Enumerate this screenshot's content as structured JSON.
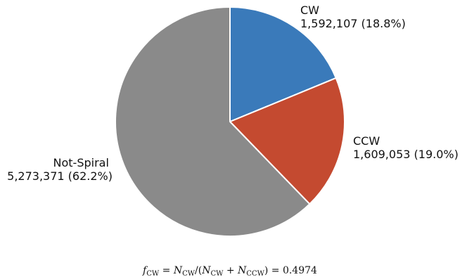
{
  "chart_data": {
    "type": "pie",
    "slices": [
      {
        "label": "CW",
        "count": "1,592,107",
        "percent": "18.8%",
        "value": 1592107,
        "color": "#3a7aba"
      },
      {
        "label": "CCW",
        "count": "1,609,053",
        "percent": "19.0%",
        "value": 1609053,
        "color": "#c44a30"
      },
      {
        "label": "Not-Spiral",
        "count": "5,273,371",
        "percent": "62.2%",
        "value": 5273371,
        "color": "#8a8a8a"
      }
    ],
    "start_angle_deg": 90,
    "direction": "clockwise",
    "annotation": {
      "f": "f",
      "f_sub": "CW",
      "eq1": " = ",
      "n1": "N",
      "n1_sub": "CW",
      "slash": "/(",
      "n2": "N",
      "n2_sub": "CW",
      "plus": " + ",
      "n3": "N",
      "n3_sub": "CCW",
      "close": ") = ",
      "result": "0.4974"
    }
  }
}
